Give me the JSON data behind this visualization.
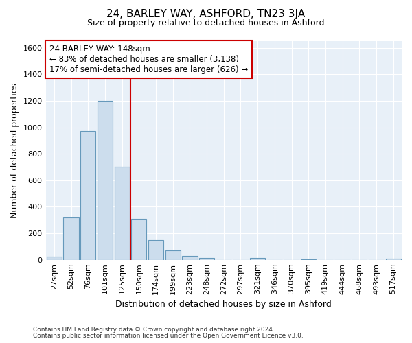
{
  "title": "24, BARLEY WAY, ASHFORD, TN23 3JA",
  "subtitle": "Size of property relative to detached houses in Ashford",
  "xlabel": "Distribution of detached houses by size in Ashford",
  "ylabel": "Number of detached properties",
  "bar_labels": [
    "27sqm",
    "52sqm",
    "76sqm",
    "101sqm",
    "125sqm",
    "150sqm",
    "174sqm",
    "199sqm",
    "223sqm",
    "248sqm",
    "272sqm",
    "297sqm",
    "321sqm",
    "346sqm",
    "370sqm",
    "395sqm",
    "419sqm",
    "444sqm",
    "468sqm",
    "493sqm",
    "517sqm"
  ],
  "bar_values": [
    25,
    320,
    970,
    1200,
    700,
    310,
    150,
    70,
    30,
    15,
    0,
    0,
    15,
    0,
    0,
    5,
    0,
    0,
    0,
    0,
    10
  ],
  "bar_color": "#ccdded",
  "bar_edgecolor": "#6699bb",
  "vline_x": 4.5,
  "vline_color": "#cc0000",
  "annotation_line1": "24 BARLEY WAY: 148sqm",
  "annotation_line2": "← 83% of detached houses are smaller (3,138)",
  "annotation_line3": "17% of semi-detached houses are larger (626) →",
  "annotation_box_color": "#ffffff",
  "annotation_box_edgecolor": "#cc0000",
  "ylim": [
    0,
    1650
  ],
  "yticks": [
    0,
    200,
    400,
    600,
    800,
    1000,
    1200,
    1400,
    1600
  ],
  "footnote1": "Contains HM Land Registry data © Crown copyright and database right 2024.",
  "footnote2": "Contains public sector information licensed under the Open Government Licence v3.0.",
  "bg_color": "#ffffff",
  "plot_bg_color": "#e8f0f8",
  "grid_color": "#ffffff",
  "title_fontsize": 11,
  "subtitle_fontsize": 9,
  "annotation_fontsize": 8.5,
  "axis_label_fontsize": 9,
  "tick_fontsize": 8
}
